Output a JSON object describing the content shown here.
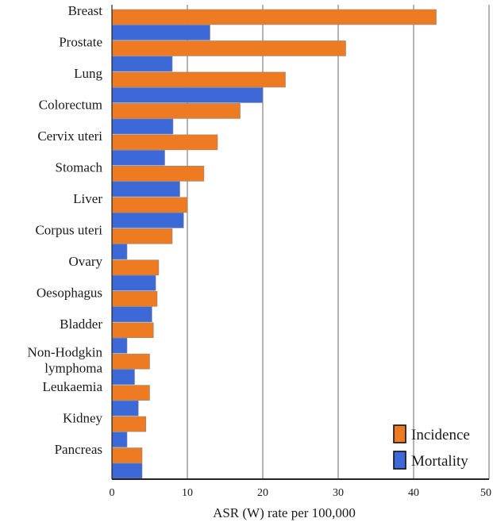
{
  "chart_data": {
    "type": "bar",
    "orientation": "horizontal",
    "categories": [
      "Breast",
      "Prostate",
      "Lung",
      "Colorectum",
      "Cervix uteri",
      "Stomach",
      "Liver",
      "Corpus uteri",
      "Ovary",
      "Oesophagus",
      "Bladder",
      "Non-Hodgkin lymphoma",
      "Leukaemia",
      "Kidney",
      "Pancreas"
    ],
    "series": [
      {
        "name": "Incidence",
        "color": "#ee7a22",
        "values": [
          43,
          31,
          23,
          17,
          14,
          12.2,
          10,
          8,
          6.2,
          6,
          5.5,
          5,
          5,
          4.5,
          4
        ]
      },
      {
        "name": "Mortality",
        "color": "#3d68d8",
        "values": [
          13,
          8,
          20,
          8.1,
          7,
          9,
          9.5,
          2,
          5.8,
          5.3,
          2,
          3,
          3.5,
          2,
          4
        ]
      }
    ],
    "xlabel": "ASR (W) rate per 100,000",
    "ylabel": "",
    "xlim": [
      0,
      50
    ],
    "xticks": [
      "0",
      "10",
      "20",
      "30",
      "40",
      "50"
    ],
    "grid": true,
    "legend": "bottom-right"
  }
}
